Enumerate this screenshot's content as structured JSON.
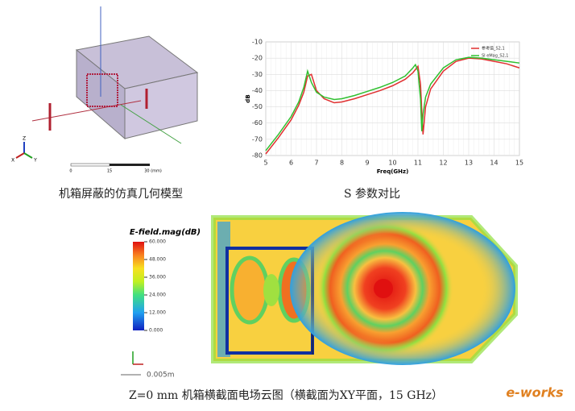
{
  "geometry_model": {
    "caption": "机箱屏蔽的仿真几何模型",
    "axis_labels": [
      "Z",
      "X",
      "Y"
    ],
    "scale_labels": [
      "0",
      "15",
      "30 (mm)"
    ]
  },
  "chart_data": {
    "type": "line",
    "caption": "S 参数对比",
    "xlabel": "Freq(GHz)",
    "ylabel": "dB",
    "x": [
      5,
      5.5,
      6,
      6.3,
      6.5,
      6.65,
      6.8,
      7,
      7.3,
      7.7,
      8,
      8.5,
      9,
      9.5,
      10,
      10.5,
      10.8,
      10.9,
      11,
      11.1,
      11.15,
      11.2,
      11.3,
      11.5,
      12,
      12.5,
      13,
      13.5,
      14,
      14.5,
      15
    ],
    "series": [
      {
        "name": "参考值_S2,1",
        "color": "#e03030",
        "values": [
          -79,
          -69,
          -58,
          -49,
          -41,
          -31,
          -30,
          -40,
          -45,
          -47.5,
          -47,
          -45,
          -42.5,
          -40,
          -37,
          -33,
          -29,
          -27,
          -25,
          -36,
          -52,
          -67,
          -50,
          -39,
          -28,
          -22,
          -20,
          -20.5,
          -22,
          -23.5,
          -26
        ]
      },
      {
        "name": "SI eMag_S2,1",
        "color": "#30c030",
        "values": [
          -77,
          -67,
          -56,
          -47,
          -38,
          -28,
          -35,
          -41,
          -44,
          -45.5,
          -45,
          -43,
          -40.5,
          -38,
          -35,
          -31,
          -26,
          -24,
          -28,
          -45,
          -65,
          -55,
          -44,
          -36,
          -26,
          -21,
          -19.5,
          -20,
          -21,
          -22,
          -23
        ]
      }
    ],
    "xlim": [
      5,
      15
    ],
    "xticks": [
      5,
      6,
      7,
      8,
      9,
      10,
      11,
      12,
      13,
      14,
      15
    ],
    "ylim": [
      -80,
      -10
    ],
    "yticks": [
      -10,
      -20,
      -30,
      -40,
      -50,
      -60,
      -70,
      -80
    ],
    "grid": true,
    "legend": "upper-right"
  },
  "field_plot": {
    "colorbar_title": "E-field.mag(dB)",
    "clim": [
      0,
      60
    ],
    "colorbar_ticks": [
      {
        "value": 60,
        "label": "60.000"
      },
      {
        "value": 48,
        "label": "48.000"
      },
      {
        "value": 36,
        "label": "36.000"
      },
      {
        "value": 24,
        "label": "24.000"
      },
      {
        "value": 12,
        "label": "12.000"
      },
      {
        "value": 0,
        "label": "0.000"
      }
    ],
    "scale_label": "0.005m",
    "caption": "Z=0 mm 机箱横截面电场云图（横截面为XY平面，15 GHz）"
  },
  "logo": "e-works"
}
